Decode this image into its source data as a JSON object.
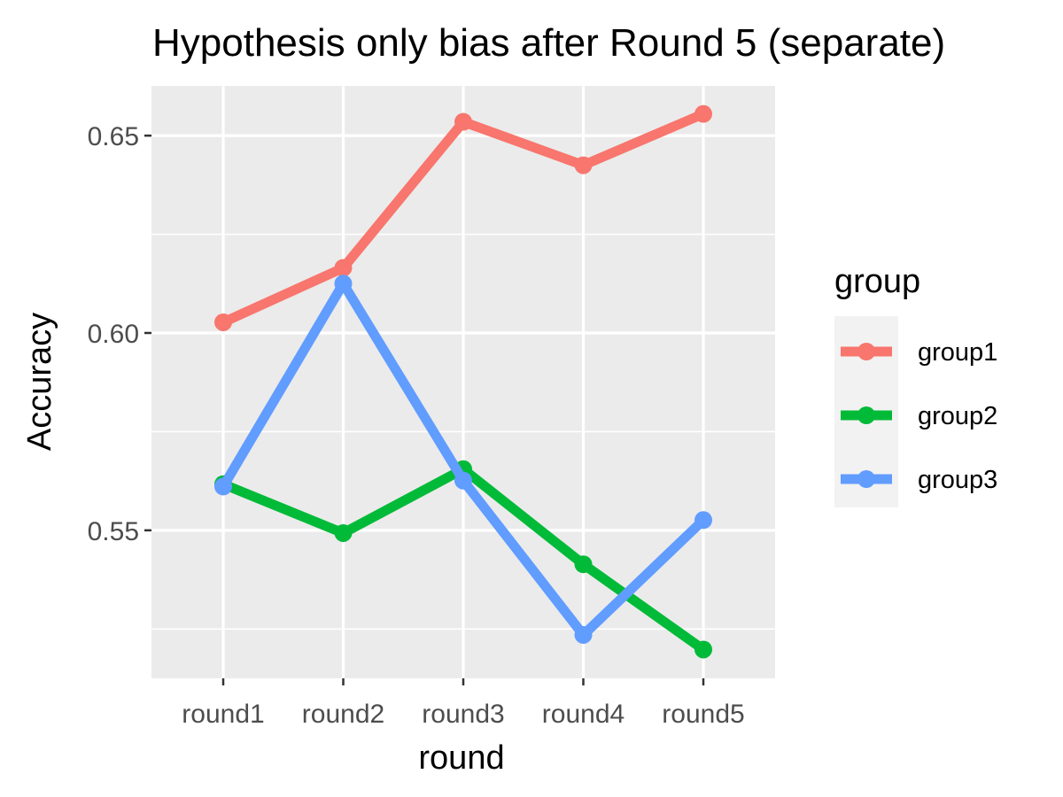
{
  "chart_data": {
    "type": "line",
    "title": "Hypothesis only bias after Round 5 (separate)",
    "xlabel": "round",
    "ylabel": "Accuracy",
    "categories": [
      "round1",
      "round2",
      "round3",
      "round4",
      "round5"
    ],
    "ylim": [
      0.5125,
      0.6626
    ],
    "y_ticks": [
      0.55,
      0.6,
      0.65
    ],
    "y_tick_labels": [
      "0.55",
      "0.60",
      "0.65"
    ],
    "grid": true,
    "legend": {
      "title": "group",
      "position": "right"
    },
    "series": [
      {
        "name": "group1",
        "color": "#F8766D",
        "values": [
          0.6027,
          0.6165,
          0.6535,
          0.6425,
          0.6555
        ]
      },
      {
        "name": "group2",
        "color": "#00BA38",
        "values": [
          0.5617,
          0.5493,
          0.5655,
          0.5414,
          0.5198
        ]
      },
      {
        "name": "group3",
        "color": "#619CFF",
        "values": [
          0.5611,
          0.6125,
          0.5626,
          0.5235,
          0.5526
        ]
      }
    ]
  }
}
